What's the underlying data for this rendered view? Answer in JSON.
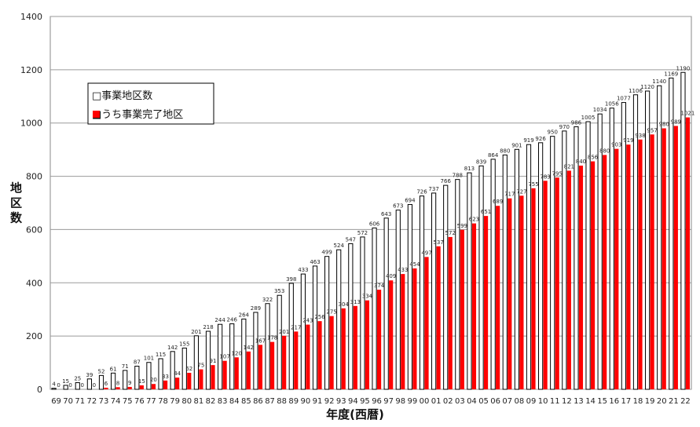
{
  "chart_data": {
    "type": "bar",
    "xlabel": "年度(西暦)",
    "ylabel": "地区数",
    "ylim": [
      0,
      1400
    ],
    "yticks": [
      0,
      200,
      400,
      600,
      800,
      1000,
      1200,
      1400
    ],
    "grid": true,
    "legend": "top-left",
    "categories": [
      "69",
      "70",
      "71",
      "72",
      "73",
      "74",
      "75",
      "76",
      "77",
      "78",
      "79",
      "80",
      "81",
      "82",
      "83",
      "84",
      "85",
      "86",
      "87",
      "88",
      "89",
      "90",
      "91",
      "92",
      "93",
      "94",
      "95",
      "96",
      "97",
      "98",
      "99",
      "00",
      "01",
      "02",
      "03",
      "04",
      "05",
      "06",
      "07",
      "08",
      "09",
      "10",
      "11",
      "12",
      "13",
      "14",
      "15",
      "16",
      "17",
      "18",
      "19",
      "20",
      "21",
      "22"
    ],
    "series": [
      {
        "name": "事業地区数",
        "color": "#ffffff",
        "stroke": "#000000",
        "values": [
          4,
          15,
          25,
          39,
          52,
          61,
          71,
          87,
          101,
          115,
          142,
          155,
          201,
          218,
          244,
          246,
          264,
          289,
          322,
          353,
          398,
          433,
          463,
          499,
          524,
          547,
          572,
          606,
          643,
          673,
          694,
          726,
          737,
          766,
          788,
          813,
          839,
          864,
          880,
          901,
          919,
          926,
          950,
          970,
          986,
          1005,
          1034,
          1056,
          1077,
          1106,
          1120,
          1140,
          1169,
          1190
        ]
      },
      {
        "name": "うち事業完了地区",
        "color": "#ff0000",
        "values": [
          0,
          0,
          0,
          0,
          6,
          8,
          9,
          15,
          20,
          33,
          44,
          62,
          75,
          91,
          107,
          120,
          142,
          167,
          178,
          201,
          217,
          243,
          256,
          275,
          304,
          313,
          334,
          374,
          409,
          433,
          454,
          497,
          537,
          572,
          599,
          623,
          651,
          689,
          717,
          727,
          755,
          783,
          795,
          821,
          840,
          856,
          880,
          903,
          919,
          938,
          957,
          980,
          989,
          1021
        ]
      }
    ]
  },
  "legend": {
    "items": [
      {
        "label": "□事業地区数",
        "color": "#ffffff"
      },
      {
        "label": "■うち事業完了地区",
        "color": "#ff0000"
      }
    ]
  }
}
